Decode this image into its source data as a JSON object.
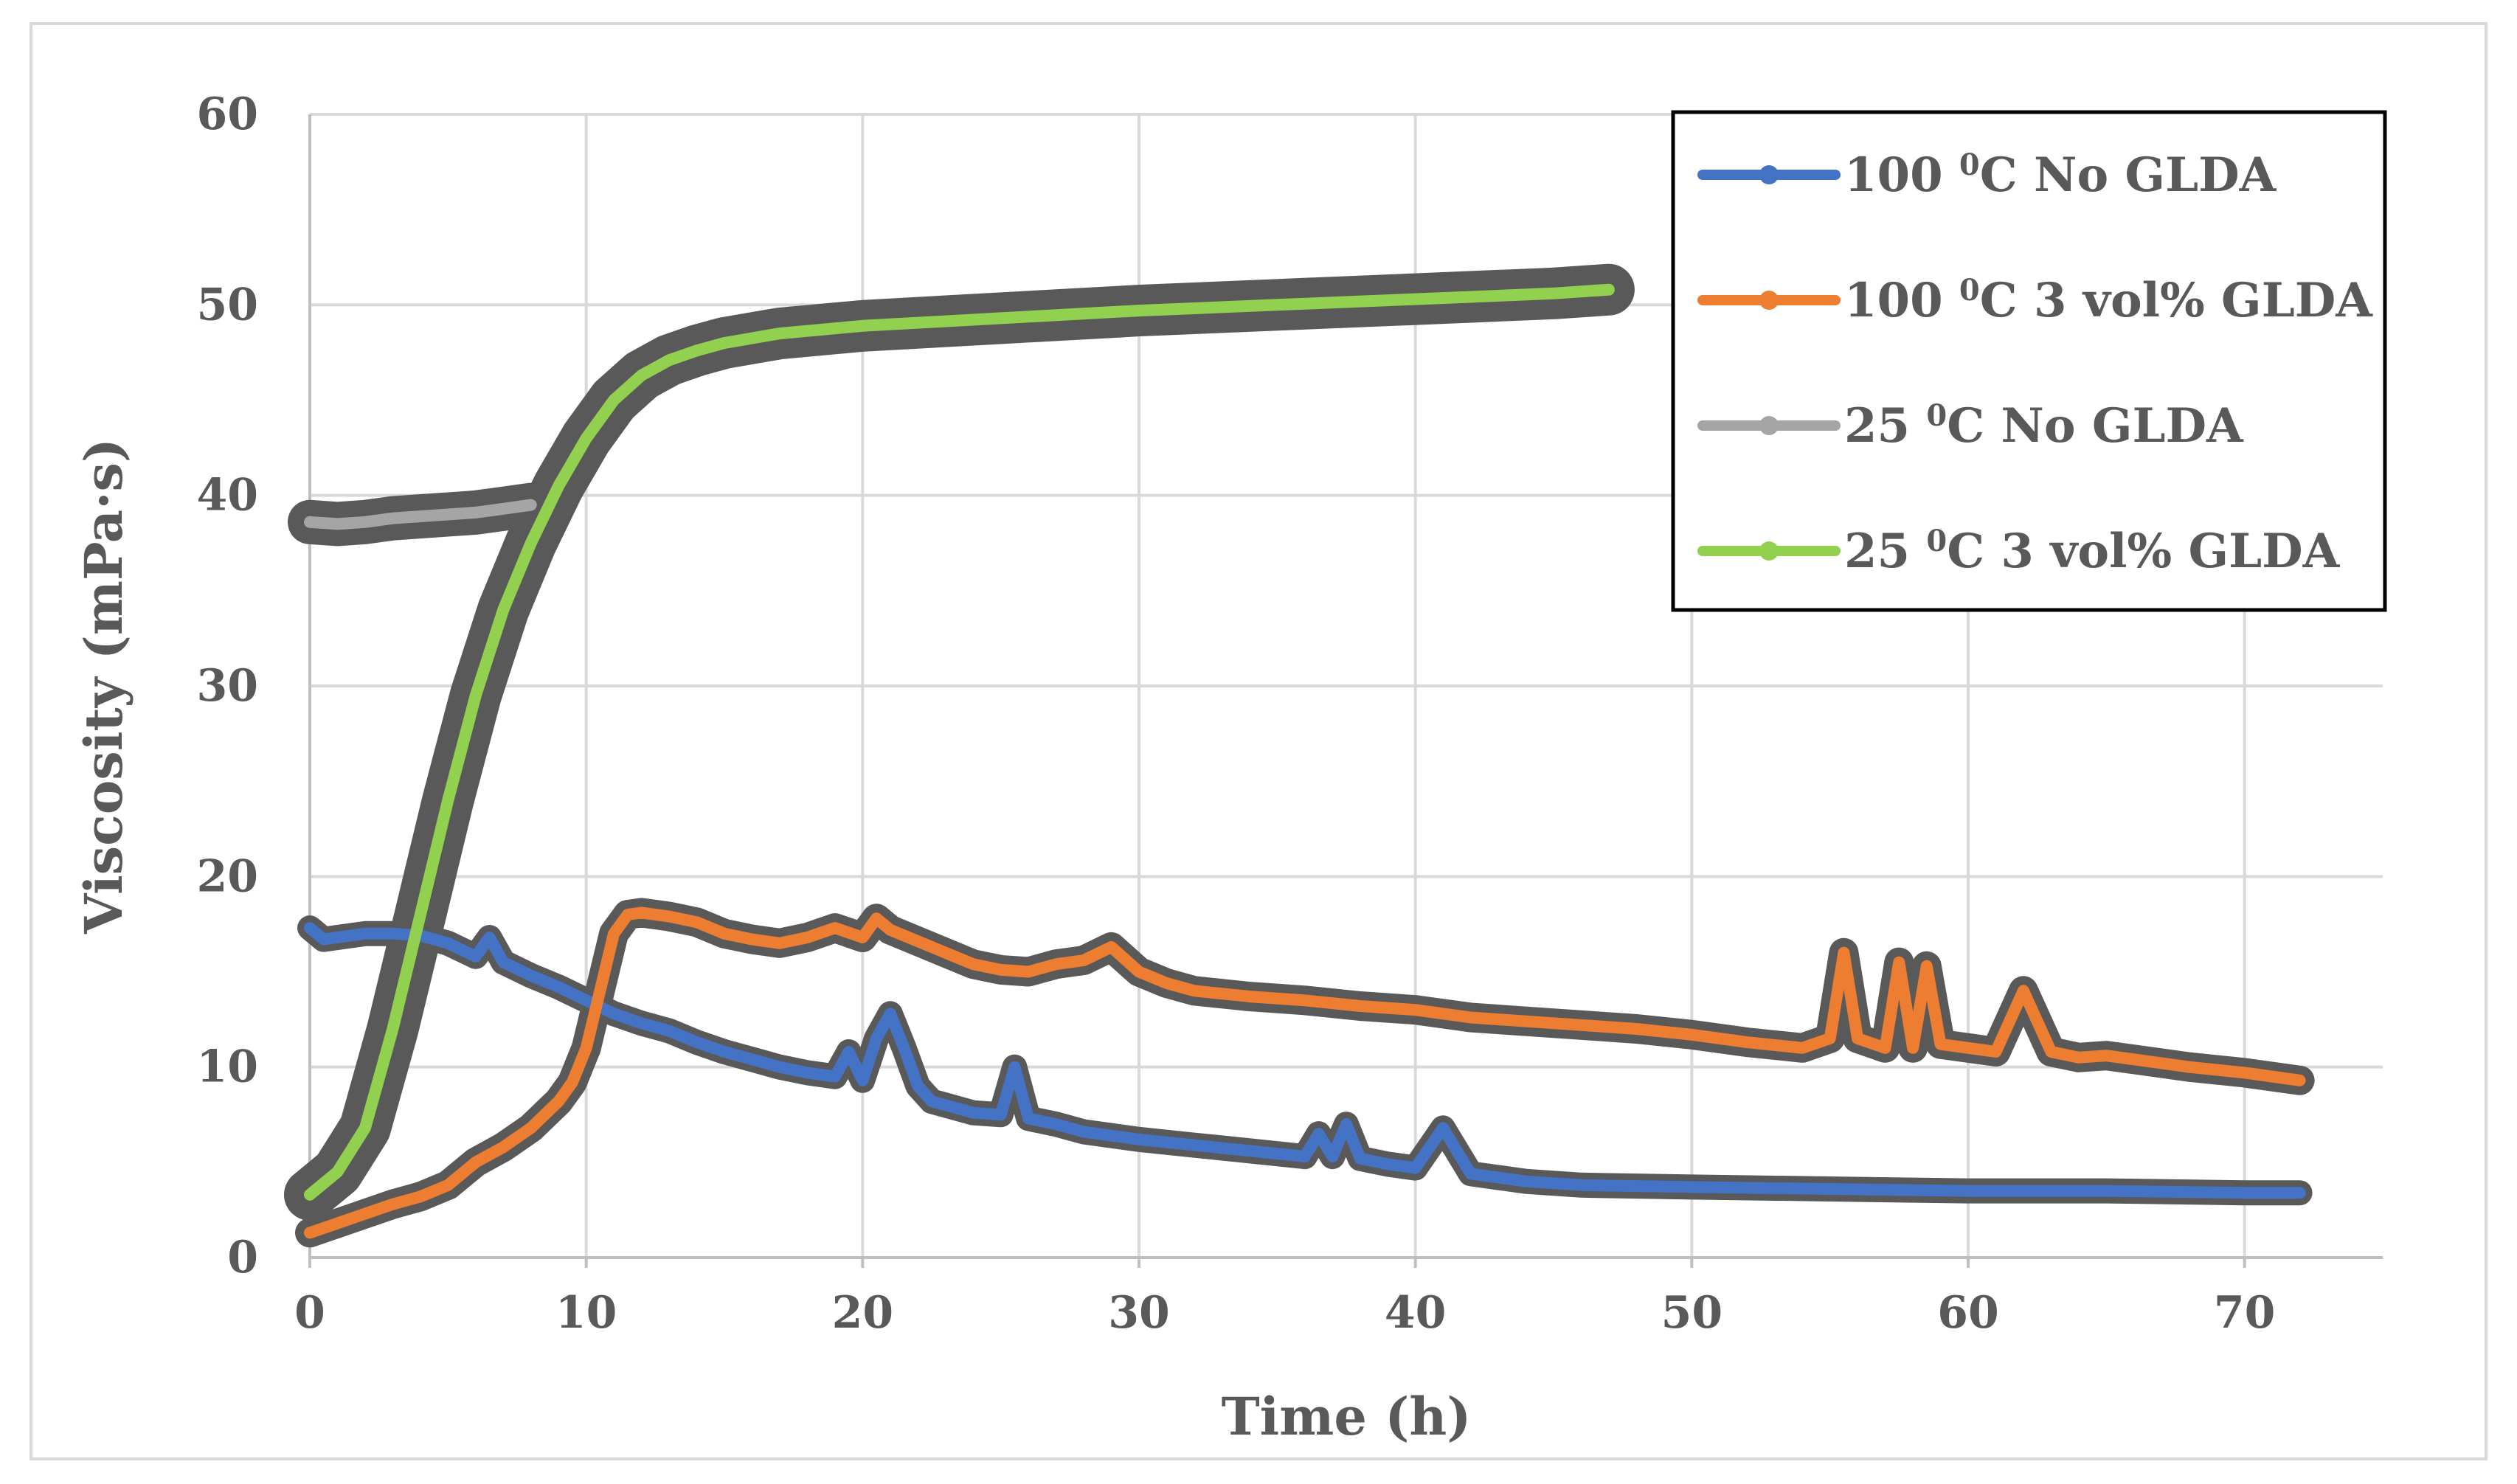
{
  "chart_data": {
    "type": "line",
    "title": "",
    "xlabel": "Time (h)",
    "ylabel": "Viscosity (mPa·s)",
    "xlim": [
      0,
      75
    ],
    "ylim": [
      0,
      60
    ],
    "xticks": [
      0,
      10,
      20,
      30,
      40,
      50,
      60,
      70
    ],
    "yticks": [
      0,
      10,
      20,
      30,
      40,
      50,
      60
    ],
    "grid": true,
    "legend_position": "top-right",
    "series": [
      {
        "name": "100 0C No GLDA",
        "legend_parts": [
          "100 ",
          "0",
          "C No GLDA"
        ],
        "color": "#4472c4",
        "x": [
          0,
          0.5,
          1,
          2,
          3,
          4,
          5,
          6,
          6.5,
          7,
          8,
          9,
          10,
          11,
          12,
          13,
          14,
          15,
          16,
          17,
          18,
          19,
          19.5,
          20,
          20.5,
          21,
          21.5,
          22,
          22.5,
          23,
          24,
          25,
          25.5,
          26,
          27,
          28,
          30,
          32,
          34,
          36,
          36.5,
          37,
          37.5,
          38,
          39,
          40,
          41,
          42,
          43,
          44,
          46,
          50,
          55,
          60,
          65,
          70,
          72
        ],
        "y": [
          17.3,
          16.7,
          16.8,
          17.0,
          17.0,
          16.9,
          16.5,
          15.8,
          16.8,
          15.5,
          14.8,
          14.2,
          13.5,
          12.8,
          12.3,
          11.9,
          11.3,
          10.8,
          10.4,
          10.0,
          9.7,
          9.5,
          10.8,
          9.3,
          11.5,
          12.8,
          11.0,
          9.0,
          8.2,
          8.0,
          7.6,
          7.5,
          10.0,
          7.3,
          7.0,
          6.6,
          6.2,
          5.9,
          5.6,
          5.3,
          6.5,
          5.3,
          7.0,
          5.2,
          4.9,
          4.7,
          6.8,
          4.4,
          4.2,
          4.0,
          3.8,
          3.7,
          3.6,
          3.5,
          3.5,
          3.4,
          3.4
        ]
      },
      {
        "name": "100 0C 3 vol% GLDA",
        "legend_parts": [
          "100 ",
          "0",
          "C 3 vol% GLDA"
        ],
        "color": "#ed7d31",
        "x": [
          0,
          1,
          2,
          3,
          4,
          5,
          6,
          7,
          8,
          9,
          9.5,
          10,
          10.5,
          11,
          11.5,
          12,
          13,
          14,
          15,
          16,
          17,
          18,
          19,
          20,
          20.5,
          21,
          22,
          23,
          24,
          25,
          26,
          27,
          28,
          29,
          30,
          31,
          32,
          34,
          36,
          38,
          40,
          42,
          44,
          46,
          48,
          50,
          52,
          54,
          55,
          55.5,
          56,
          57,
          57.5,
          58,
          58.5,
          59,
          60,
          61,
          62,
          63,
          64,
          65,
          66,
          68,
          70,
          72
        ],
        "y": [
          1.3,
          1.8,
          2.3,
          2.8,
          3.2,
          3.8,
          5.0,
          5.8,
          6.8,
          8.2,
          9.2,
          11.0,
          14.0,
          17.0,
          18.0,
          18.1,
          17.9,
          17.6,
          17.0,
          16.7,
          16.5,
          16.8,
          17.3,
          16.8,
          17.8,
          17.2,
          16.6,
          16.0,
          15.4,
          15.1,
          15.0,
          15.4,
          15.6,
          16.3,
          15.0,
          14.4,
          14.0,
          13.7,
          13.5,
          13.2,
          13.0,
          12.6,
          12.4,
          12.2,
          12.0,
          11.7,
          11.3,
          11.0,
          11.5,
          16.0,
          11.5,
          11.0,
          15.5,
          11.0,
          15.3,
          11.2,
          11.0,
          10.8,
          14.0,
          10.8,
          10.5,
          10.6,
          10.4,
          10.0,
          9.7,
          9.3
        ]
      },
      {
        "name": "25 0C No GLDA",
        "legend_parts": [
          "25 ",
          "0",
          "C No GLDA"
        ],
        "color": "#a5a5a5",
        "x": [
          0,
          1,
          2,
          3,
          4,
          5,
          6,
          7,
          8
        ],
        "y": [
          38.6,
          38.5,
          38.6,
          38.8,
          38.9,
          39.0,
          39.1,
          39.3,
          39.5
        ]
      },
      {
        "name": "25 0C 3 vol% GLDA",
        "legend_parts": [
          "25 ",
          "0",
          "C 3 vol% GLDA"
        ],
        "color": "#92d050",
        "x": [
          0,
          1,
          2,
          3,
          4,
          5,
          6,
          7,
          8,
          9,
          10,
          11,
          12,
          13,
          14,
          15,
          17,
          20,
          25,
          30,
          35,
          40,
          45,
          47
        ],
        "y": [
          3.3,
          4.5,
          6.8,
          12.0,
          18.0,
          24.0,
          29.5,
          34.0,
          37.5,
          40.5,
          43.0,
          45.0,
          46.3,
          47.1,
          47.6,
          48.0,
          48.5,
          48.9,
          49.3,
          49.7,
          50.0,
          50.3,
          50.6,
          50.8
        ]
      }
    ]
  }
}
